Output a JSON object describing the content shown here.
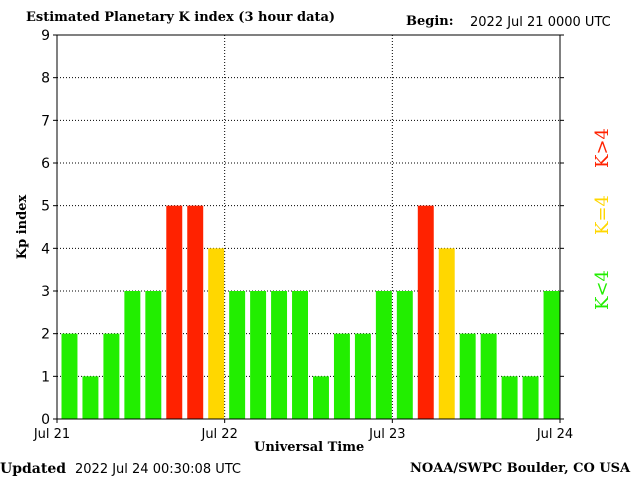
{
  "header": {
    "title": "Estimated Planetary K index (3 hour data)",
    "begin_label": "Begin:",
    "begin_value": "2022 Jul 21 0000 UTC"
  },
  "footer": {
    "updated_label": "Updated",
    "updated_value": "2022 Jul 24 00:30:08 UTC",
    "credit": "NOAA/SWPC Boulder, CO USA"
  },
  "legend": {
    "items": [
      {
        "label": "K<4",
        "color": "#22ee00"
      },
      {
        "label": "K=4",
        "color": "#ffd700"
      },
      {
        "label": "K>4",
        "color": "#ff2200"
      }
    ],
    "placement": "right"
  },
  "chart_data": {
    "type": "bar",
    "title": "Estimated Planetary K index (3 hour data)",
    "xlabel": "Universal Time",
    "ylabel": "Kp index",
    "ylim": [
      0,
      9
    ],
    "yticks": [
      "0",
      "1",
      "2",
      "3",
      "4",
      "5",
      "6",
      "7",
      "8",
      "9"
    ],
    "xticks": [
      "Jul 21",
      "Jul 22",
      "Jul 23",
      "Jul 24"
    ],
    "grid": true,
    "values": [
      2,
      1,
      2,
      3,
      3,
      5,
      5,
      4,
      3,
      3,
      3,
      3,
      1,
      2,
      2,
      3,
      3,
      5,
      4,
      2,
      2,
      1,
      1,
      3
    ],
    "colors": {
      "low": "#22ee00",
      "equal": "#ffd700",
      "high": "#ff2200"
    }
  }
}
